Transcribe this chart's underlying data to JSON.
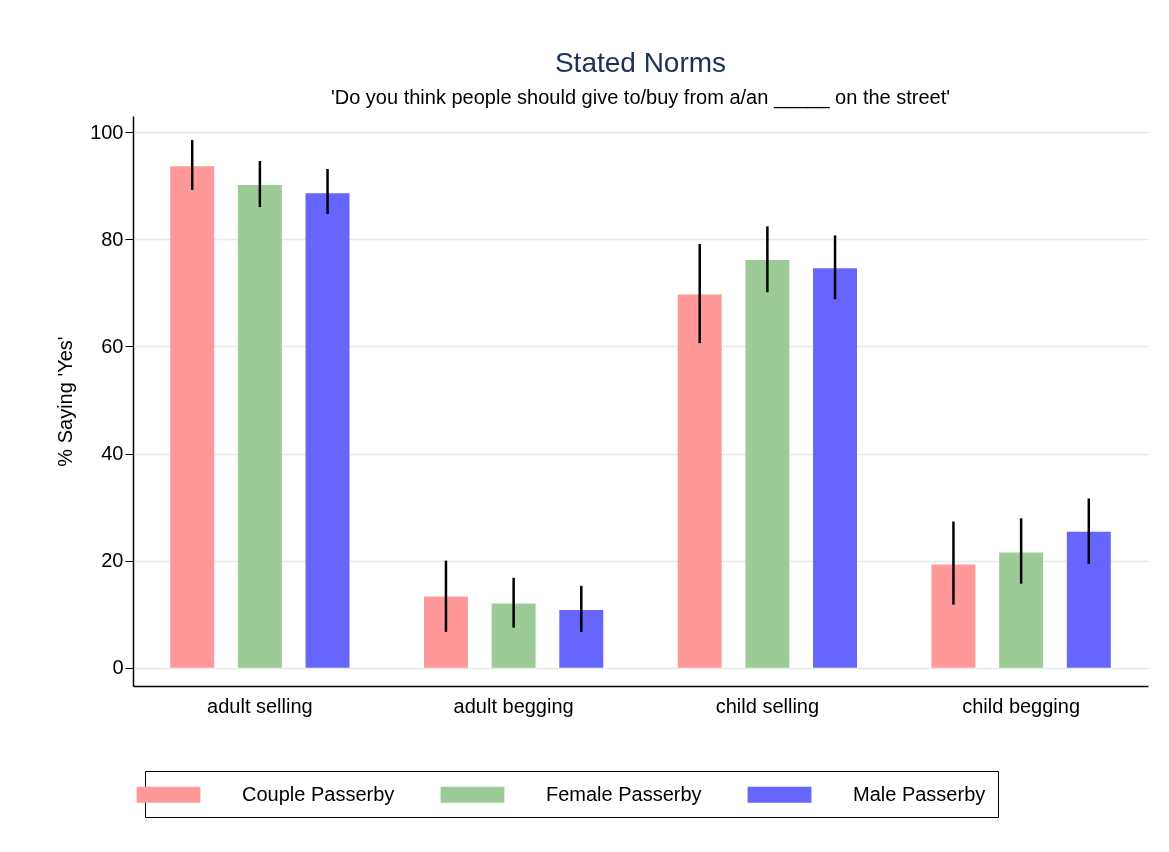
{
  "chart_data": {
    "type": "bar",
    "title": "Stated Norms",
    "subtitle": "'Do you think people should give to/buy from a/an _____ on the street'",
    "ylabel": "% Saying 'Yes'",
    "categories": [
      "adult selling",
      "adult begging",
      "child selling",
      "child begging"
    ],
    "series": [
      {
        "name": "Couple Passerby",
        "color": "#ff9999",
        "values": [
          93.6,
          13.3,
          69.7,
          19.3
        ],
        "errors": [
          [
            89.2,
            98.5
          ],
          [
            6.7,
            20.0
          ],
          [
            60.6,
            79.1
          ],
          [
            11.8,
            27.3
          ]
        ]
      },
      {
        "name": "Female Passerby",
        "color": "#9dcb98",
        "values": [
          90.1,
          12.0,
          76.1,
          21.5
        ],
        "errors": [
          [
            86.0,
            94.6
          ],
          [
            7.5,
            16.8
          ],
          [
            70.1,
            82.4
          ],
          [
            15.7,
            27.9
          ]
        ]
      },
      {
        "name": "Male Passerby",
        "color": "#6666ff",
        "values": [
          88.6,
          10.8,
          74.6,
          25.4
        ],
        "errors": [
          [
            84.7,
            93.1
          ],
          [
            6.7,
            15.3
          ],
          [
            68.8,
            80.7
          ],
          [
            19.4,
            31.6
          ]
        ]
      }
    ],
    "ylim": [
      -3.4,
      103
    ],
    "yticks": [
      0,
      20,
      40,
      60,
      80,
      100
    ],
    "grid": "y",
    "legend": "bottom"
  }
}
